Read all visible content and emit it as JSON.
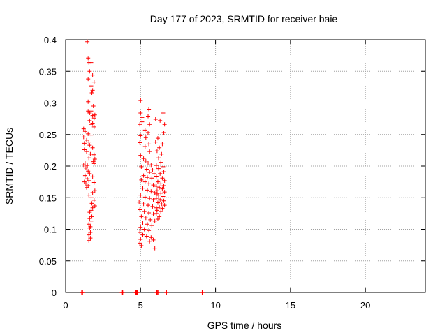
{
  "chart_data": {
    "type": "scatter",
    "title": "Day 177 of 2023, SRMTID for receiver baie",
    "xlabel": "GPS time / hours",
    "ylabel": "SRMTID / TECUs",
    "xlim": [
      0,
      24
    ],
    "ylim": [
      0,
      0.4
    ],
    "xticks": [
      0,
      5,
      10,
      15,
      20
    ],
    "xtick_labels": [
      "0",
      "5",
      "10",
      "15",
      "20"
    ],
    "yticks": [
      0,
      0.05,
      0.1,
      0.15,
      0.2,
      0.25,
      0.3,
      0.35,
      0.4
    ],
    "ytick_labels": [
      "0",
      "0.05",
      "0.1",
      "0.15",
      "0.2",
      "0.25",
      "0.3",
      "0.35",
      "0.4"
    ],
    "grid": true,
    "marker": "+",
    "color": "#ff0000",
    "series": [
      {
        "name": "SRMTID",
        "points": [
          [
            1.45,
            0.397
          ],
          [
            1.5,
            0.371
          ],
          [
            1.55,
            0.364
          ],
          [
            1.7,
            0.364
          ],
          [
            1.6,
            0.35
          ],
          [
            1.8,
            0.344
          ],
          [
            1.5,
            0.338
          ],
          [
            1.9,
            0.333
          ],
          [
            1.7,
            0.327
          ],
          [
            1.8,
            0.32
          ],
          [
            1.75,
            0.316
          ],
          [
            1.5,
            0.302
          ],
          [
            1.85,
            0.295
          ],
          [
            1.5,
            0.287
          ],
          [
            1.7,
            0.287
          ],
          [
            1.6,
            0.284
          ],
          [
            1.8,
            0.28
          ],
          [
            1.95,
            0.281
          ],
          [
            1.9,
            0.276
          ],
          [
            1.8,
            0.268
          ],
          [
            1.6,
            0.272
          ],
          [
            1.7,
            0.266
          ],
          [
            1.9,
            0.262
          ],
          [
            1.2,
            0.259
          ],
          [
            1.3,
            0.255
          ],
          [
            1.5,
            0.251
          ],
          [
            1.7,
            0.249
          ],
          [
            1.2,
            0.246
          ],
          [
            1.4,
            0.241
          ],
          [
            1.55,
            0.238
          ],
          [
            1.25,
            0.236
          ],
          [
            1.6,
            0.233
          ],
          [
            1.8,
            0.229
          ],
          [
            1.25,
            0.226
          ],
          [
            1.4,
            0.223
          ],
          [
            1.65,
            0.219
          ],
          [
            1.9,
            0.218
          ],
          [
            1.95,
            0.211
          ],
          [
            1.55,
            0.213
          ],
          [
            1.85,
            0.207
          ],
          [
            1.3,
            0.205
          ],
          [
            1.2,
            0.202
          ],
          [
            1.45,
            0.201
          ],
          [
            1.9,
            0.204
          ],
          [
            1.35,
            0.197
          ],
          [
            1.5,
            0.192
          ],
          [
            1.6,
            0.188
          ],
          [
            1.3,
            0.185
          ],
          [
            1.8,
            0.183
          ],
          [
            1.45,
            0.18
          ],
          [
            1.55,
            0.177
          ],
          [
            1.25,
            0.175
          ],
          [
            1.35,
            0.172
          ],
          [
            1.5,
            0.169
          ],
          [
            1.9,
            0.174
          ],
          [
            1.4,
            0.166
          ],
          [
            1.95,
            0.161
          ],
          [
            1.8,
            0.158
          ],
          [
            1.55,
            0.154
          ],
          [
            1.7,
            0.15
          ],
          [
            1.9,
            0.146
          ],
          [
            1.75,
            0.141
          ],
          [
            1.95,
            0.137
          ],
          [
            1.8,
            0.134
          ],
          [
            1.7,
            0.13
          ],
          [
            1.6,
            0.127
          ],
          [
            1.75,
            0.12
          ],
          [
            1.6,
            0.117
          ],
          [
            1.7,
            0.113
          ],
          [
            1.55,
            0.108
          ],
          [
            1.65,
            0.104
          ],
          [
            1.6,
            0.102
          ],
          [
            1.65,
            0.095
          ],
          [
            1.55,
            0.091
          ],
          [
            1.65,
            0.086
          ],
          [
            1.55,
            0.082
          ],
          [
            5.0,
            0.304
          ],
          [
            5.55,
            0.29
          ],
          [
            5.0,
            0.284
          ],
          [
            5.1,
            0.277
          ],
          [
            5.5,
            0.279
          ],
          [
            5.1,
            0.27
          ],
          [
            5.6,
            0.266
          ],
          [
            4.95,
            0.266
          ],
          [
            5.3,
            0.257
          ],
          [
            5.5,
            0.253
          ],
          [
            5.0,
            0.248
          ],
          [
            5.35,
            0.245
          ],
          [
            4.95,
            0.237
          ],
          [
            5.55,
            0.235
          ],
          [
            5.3,
            0.231
          ],
          [
            5.6,
            0.223
          ],
          [
            5.0,
            0.217
          ],
          [
            5.2,
            0.212
          ],
          [
            5.35,
            0.208
          ],
          [
            5.5,
            0.205
          ],
          [
            5.7,
            0.202
          ],
          [
            5.05,
            0.199
          ],
          [
            5.4,
            0.195
          ],
          [
            5.8,
            0.194
          ],
          [
            5.6,
            0.19
          ],
          [
            5.9,
            0.188
          ],
          [
            5.2,
            0.185
          ],
          [
            5.45,
            0.182
          ],
          [
            5.75,
            0.181
          ],
          [
            5.05,
            0.178
          ],
          [
            5.3,
            0.175
          ],
          [
            5.55,
            0.172
          ],
          [
            5.85,
            0.17
          ],
          [
            6.05,
            0.168
          ],
          [
            5.15,
            0.165
          ],
          [
            5.45,
            0.162
          ],
          [
            5.7,
            0.16
          ],
          [
            5.95,
            0.158
          ],
          [
            6.1,
            0.156
          ],
          [
            5.0,
            0.154
          ],
          [
            5.3,
            0.151
          ],
          [
            5.6,
            0.149
          ],
          [
            5.85,
            0.147
          ],
          [
            4.9,
            0.143
          ],
          [
            5.2,
            0.14
          ],
          [
            5.5,
            0.138
          ],
          [
            5.8,
            0.136
          ],
          [
            6.05,
            0.134
          ],
          [
            4.95,
            0.131
          ],
          [
            5.25,
            0.128
          ],
          [
            5.55,
            0.126
          ],
          [
            5.85,
            0.124
          ],
          [
            5.05,
            0.12
          ],
          [
            5.35,
            0.118
          ],
          [
            5.65,
            0.115
          ],
          [
            5.95,
            0.113
          ],
          [
            5.15,
            0.11
          ],
          [
            5.45,
            0.108
          ],
          [
            5.75,
            0.106
          ],
          [
            5.0,
            0.103
          ],
          [
            5.25,
            0.1
          ],
          [
            5.55,
            0.098
          ],
          [
            4.95,
            0.095
          ],
          [
            5.15,
            0.091
          ],
          [
            5.4,
            0.089
          ],
          [
            5.7,
            0.087
          ],
          [
            5.0,
            0.084
          ],
          [
            5.85,
            0.083
          ],
          [
            5.6,
            0.081
          ],
          [
            4.95,
            0.078
          ],
          [
            5.05,
            0.074
          ],
          [
            5.95,
            0.07
          ],
          [
            6.0,
            0.274
          ],
          [
            6.3,
            0.272
          ],
          [
            6.6,
            0.266
          ],
          [
            6.5,
            0.284
          ],
          [
            6.55,
            0.253
          ],
          [
            6.15,
            0.244
          ],
          [
            6.0,
            0.238
          ],
          [
            6.45,
            0.235
          ],
          [
            6.25,
            0.229
          ],
          [
            6.1,
            0.224
          ],
          [
            6.4,
            0.219
          ],
          [
            6.2,
            0.213
          ],
          [
            6.35,
            0.206
          ],
          [
            6.05,
            0.201
          ],
          [
            6.5,
            0.199
          ],
          [
            6.2,
            0.196
          ],
          [
            6.55,
            0.191
          ],
          [
            6.3,
            0.188
          ],
          [
            6.05,
            0.184
          ],
          [
            6.45,
            0.181
          ],
          [
            6.6,
            0.177
          ],
          [
            6.15,
            0.175
          ],
          [
            6.35,
            0.172
          ],
          [
            6.55,
            0.169
          ],
          [
            6.25,
            0.166
          ],
          [
            6.45,
            0.164
          ],
          [
            6.1,
            0.161
          ],
          [
            6.6,
            0.159
          ],
          [
            6.35,
            0.157
          ],
          [
            6.2,
            0.154
          ],
          [
            6.5,
            0.152
          ],
          [
            6.05,
            0.149
          ],
          [
            6.3,
            0.147
          ],
          [
            6.55,
            0.145
          ],
          [
            6.15,
            0.142
          ],
          [
            6.4,
            0.14
          ],
          [
            6.6,
            0.138
          ],
          [
            6.25,
            0.135
          ],
          [
            6.45,
            0.133
          ],
          [
            6.1,
            0.13
          ],
          [
            6.35,
            0.128
          ],
          [
            6.05,
            0.125
          ],
          [
            6.25,
            0.12
          ],
          [
            6.15,
            0.116
          ]
        ]
      }
    ],
    "baseline_marks": {
      "y": 0,
      "x": [
        1.08,
        1.12,
        3.75,
        3.8,
        4.68,
        4.72,
        4.78,
        6.08,
        6.15,
        6.72,
        9.12
      ]
    }
  }
}
